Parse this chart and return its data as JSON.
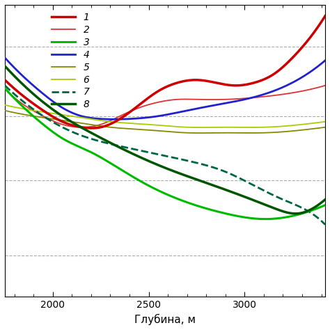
{
  "xlabel": "Глубина, м",
  "xlim": [
    1750,
    3420
  ],
  "ylim": [
    -7.0,
    3.5
  ],
  "xticks": [
    2000,
    2500,
    3000
  ],
  "grid_color": "#aaaaaa",
  "curves": {
    "c1": {
      "color": "#cc0000",
      "lw": 2.5,
      "ls": "solid",
      "x": [
        1750,
        1850,
        1950,
        2050,
        2150,
        2250,
        2350,
        2450,
        2550,
        2650,
        2750,
        2850,
        2950,
        3050,
        3150,
        3250,
        3350,
        3420
      ],
      "y": [
        0.8,
        0.2,
        -0.3,
        -0.7,
        -0.9,
        -0.9,
        -0.6,
        -0.1,
        0.4,
        0.7,
        0.8,
        0.7,
        0.6,
        0.7,
        1.0,
        1.6,
        2.4,
        3.1
      ]
    },
    "c2": {
      "color": "#dd3333",
      "lw": 1.3,
      "ls": "solid",
      "x": [
        1750,
        1850,
        1950,
        2050,
        2150,
        2250,
        2350,
        2450,
        2550,
        2650,
        2750,
        2900,
        3100,
        3300,
        3420
      ],
      "y": [
        0.5,
        -0.1,
        -0.5,
        -0.8,
        -0.9,
        -0.8,
        -0.5,
        -0.2,
        0.0,
        0.1,
        0.1,
        0.1,
        0.2,
        0.4,
        0.6
      ]
    },
    "c3": {
      "color": "#00bb00",
      "lw": 2.2,
      "ls": "solid",
      "x": [
        1750,
        1850,
        1950,
        2050,
        2200,
        2350,
        2500,
        2700,
        2900,
        3100,
        3300,
        3420
      ],
      "y": [
        0.5,
        -0.2,
        -0.8,
        -1.3,
        -1.8,
        -2.4,
        -3.0,
        -3.6,
        -4.0,
        -4.2,
        -4.0,
        -3.7
      ]
    },
    "c4": {
      "color": "#2222cc",
      "lw": 2.0,
      "ls": "solid",
      "x": [
        1750,
        1850,
        1950,
        2050,
        2150,
        2250,
        2400,
        2550,
        2700,
        2850,
        3000,
        3150,
        3300,
        3420
      ],
      "y": [
        1.6,
        0.9,
        0.3,
        -0.2,
        -0.5,
        -0.6,
        -0.6,
        -0.5,
        -0.3,
        -0.1,
        0.1,
        0.4,
        0.9,
        1.5
      ]
    },
    "c5": {
      "color": "#888800",
      "lw": 1.3,
      "ls": "solid",
      "x": [
        1750,
        1900,
        2100,
        2300,
        2500,
        2700,
        2900,
        3100,
        3300,
        3420
      ],
      "y": [
        -0.3,
        -0.5,
        -0.7,
        -0.9,
        -1.0,
        -1.1,
        -1.1,
        -1.1,
        -1.0,
        -0.9
      ]
    },
    "c6": {
      "color": "#aacc00",
      "lw": 1.3,
      "ls": "solid",
      "x": [
        1750,
        1900,
        2100,
        2300,
        2500,
        2700,
        2900,
        3100,
        3300,
        3420
      ],
      "y": [
        -0.1,
        -0.3,
        -0.5,
        -0.7,
        -0.8,
        -0.9,
        -0.9,
        -0.9,
        -0.8,
        -0.7
      ]
    },
    "c7": {
      "color": "#006644",
      "lw": 2.0,
      "ls": "dashed",
      "x": [
        1750,
        1850,
        1950,
        2050,
        2150,
        2300,
        2500,
        2700,
        2900,
        3050,
        3200,
        3300,
        3420
      ],
      "y": [
        0.6,
        0.0,
        -0.5,
        -0.9,
        -1.2,
        -1.5,
        -1.8,
        -2.1,
        -2.5,
        -3.0,
        -3.5,
        -3.8,
        -4.4
      ]
    },
    "c8": {
      "color": "#005500",
      "lw": 2.5,
      "ls": "solid",
      "x": [
        1750,
        1850,
        1950,
        2050,
        2200,
        2400,
        2600,
        2800,
        3000,
        3150,
        3280,
        3360,
        3420
      ],
      "y": [
        1.3,
        0.6,
        0.0,
        -0.5,
        -1.1,
        -1.8,
        -2.4,
        -2.9,
        -3.4,
        -3.8,
        -4.0,
        -3.8,
        -3.5
      ]
    }
  },
  "legend": [
    {
      "label": "1",
      "color": "#cc0000",
      "lw": 2.5,
      "ls": "solid"
    },
    {
      "label": "2",
      "color": "#dd3333",
      "lw": 1.3,
      "ls": "solid"
    },
    {
      "label": "3",
      "color": "#00bb00",
      "lw": 2.2,
      "ls": "solid"
    },
    {
      "label": "4",
      "color": "#2222cc",
      "lw": 2.0,
      "ls": "solid"
    },
    {
      "label": "5",
      "color": "#888800",
      "lw": 1.3,
      "ls": "solid"
    },
    {
      "label": "6",
      "color": "#aacc00",
      "lw": 1.3,
      "ls": "solid"
    },
    {
      "label": "7",
      "color": "#006644",
      "lw": 2.0,
      "ls": "dashed"
    },
    {
      "label": "8",
      "color": "#005500",
      "lw": 2.5,
      "ls": "solid"
    }
  ]
}
